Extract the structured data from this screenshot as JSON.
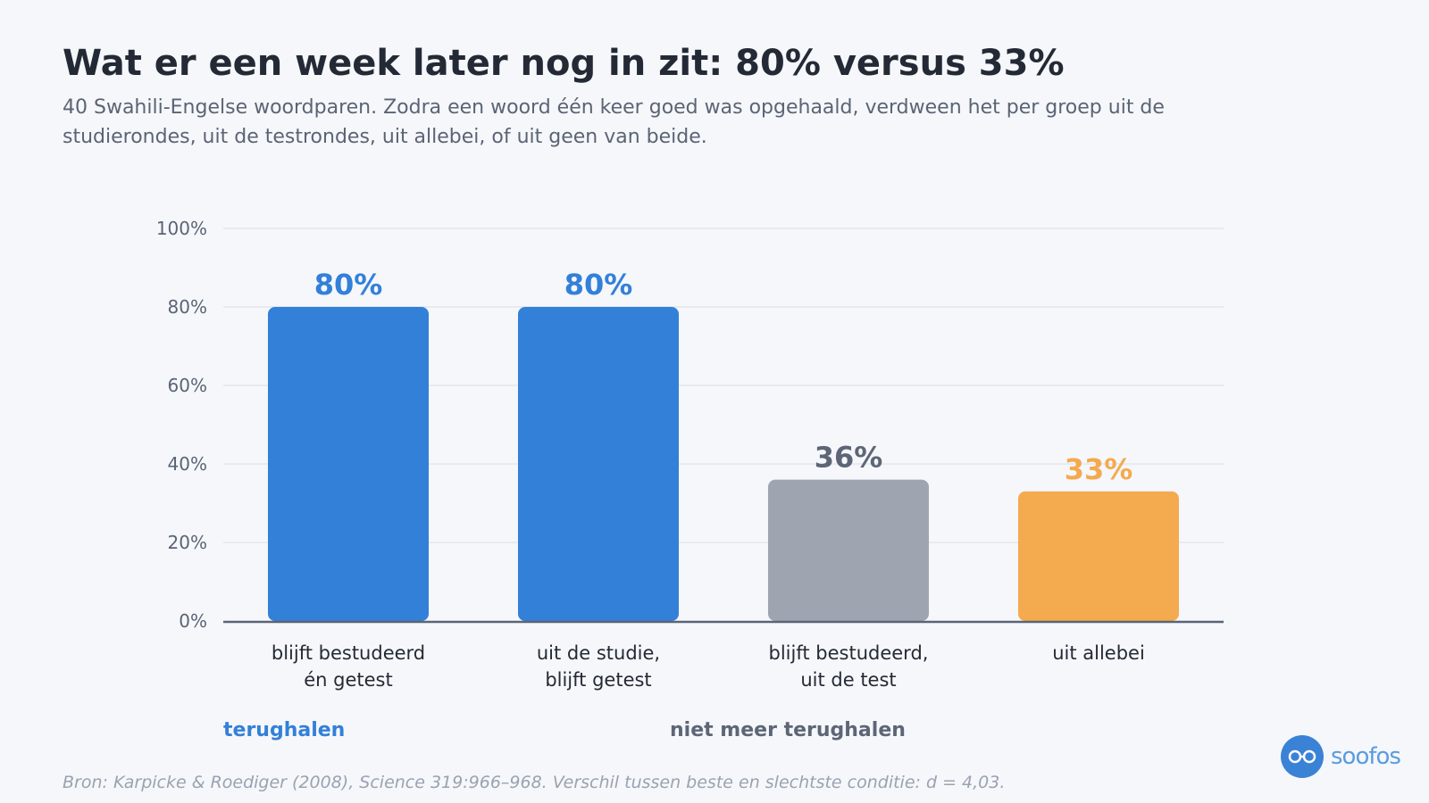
{
  "header": {
    "title": "Wat er een week later nog in zit: 80% versus 33%",
    "subtitle": "40 Swahili-Engelse woordparen. Zodra een woord één keer goed was opgehaald, verdween het per groep uit de studierondes, uit de testrondes, uit allebei, of uit geen van beide."
  },
  "chart_data": {
    "type": "bar",
    "categories": [
      [
        "blijft bestudeerd",
        "én getest"
      ],
      [
        "uit de studie,",
        "blijft getest"
      ],
      [
        "blijft bestudeerd,",
        "uit de test"
      ],
      [
        "uit allebei"
      ]
    ],
    "values": [
      80,
      80,
      36,
      33
    ],
    "value_labels": [
      "80%",
      "80%",
      "36%",
      "33%"
    ],
    "bar_colors": [
      "#3380d8",
      "#3380d8",
      "#9ea5b1",
      "#f4aa4e"
    ],
    "label_colors": [
      "#3380d8",
      "#3380d8",
      "#5d6676",
      "#f4aa4e"
    ],
    "ylim": [
      0,
      100
    ],
    "yticks": [
      0,
      20,
      40,
      60,
      80,
      100
    ],
    "ytick_labels": [
      "0%",
      "20%",
      "40%",
      "60%",
      "80%",
      "100%"
    ],
    "grid": true
  },
  "groups": {
    "retrieval_label": "terughalen",
    "retrieval_color": "#3380d8",
    "no_retrieval_label": "niet meer terughalen",
    "no_retrieval_color": "#5d6676"
  },
  "footer": {
    "source": "Bron: Karpicke & Roediger (2008), Science 319:966–968. Verschil tussen beste en slechtste conditie: d = 4,03.",
    "brand": "soofos",
    "brand_icon": "glasses-icon"
  }
}
